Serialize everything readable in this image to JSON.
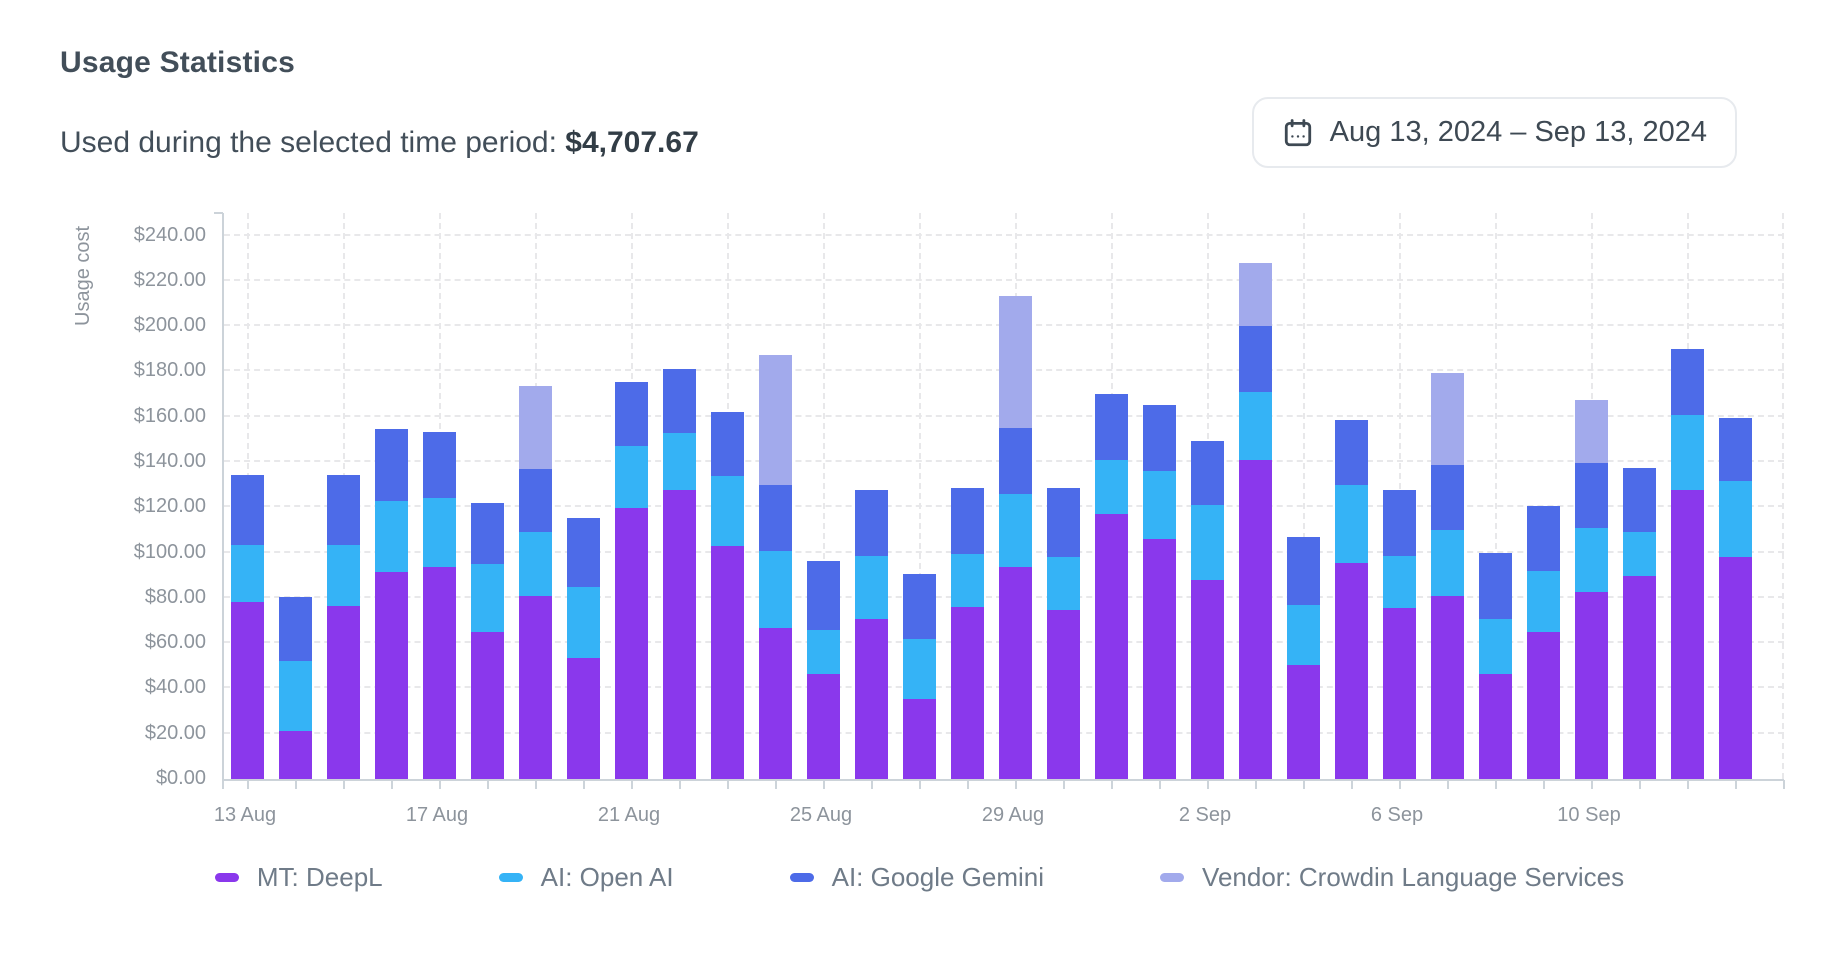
{
  "header": {
    "title": "Usage Statistics",
    "period_label": "Used during the selected time period:",
    "period_amount": "$4,707.67",
    "date_range": "Aug 13, 2024 – Sep 13, 2024"
  },
  "chart_data": {
    "type": "bar",
    "stacked": true,
    "y_axis_title": "Usage cost",
    "y_max": 250,
    "y_tick_step": 20,
    "y_tick_labels": [
      "$0.00",
      "$20.00",
      "$40.00",
      "$60.00",
      "$80.00",
      "$100.00",
      "$120.00",
      "$140.00",
      "$160.00",
      "$180.00",
      "$200.00",
      "$220.00",
      "$240.00"
    ],
    "grid": true,
    "legend_position": "bottom",
    "categories": [
      "13 Aug",
      "14 Aug",
      "15 Aug",
      "16 Aug",
      "17 Aug",
      "18 Aug",
      "19 Aug",
      "20 Aug",
      "21 Aug",
      "22 Aug",
      "23 Aug",
      "24 Aug",
      "25 Aug",
      "26 Aug",
      "27 Aug",
      "28 Aug",
      "29 Aug",
      "30 Aug",
      "31 Aug",
      "1 Sep",
      "2 Sep",
      "3 Sep",
      "4 Sep",
      "5 Sep",
      "6 Sep",
      "7 Sep",
      "8 Sep",
      "9 Sep",
      "10 Sep",
      "11 Sep",
      "12 Sep",
      "13 Sep"
    ],
    "x_tick_indices": [
      0,
      4,
      8,
      12,
      16,
      20,
      24,
      28
    ],
    "series": [
      {
        "name": "MT: DeepL",
        "color": "#8a38ec",
        "values": [
          78,
          21,
          76.5,
          91.5,
          93.5,
          65,
          81,
          53.5,
          119.5,
          127.5,
          103,
          66.5,
          46.5,
          70.5,
          35.5,
          76,
          93.5,
          74.5,
          117,
          106,
          88,
          141,
          50.5,
          95.5,
          75.5,
          81,
          46.5,
          65,
          82.5,
          89.5,
          127.5,
          98
        ]
      },
      {
        "name": "AI: Open AI",
        "color": "#35b3f6",
        "values": [
          25.5,
          31,
          27,
          31.5,
          30.5,
          30,
          28,
          31.5,
          27.5,
          25.5,
          31,
          34,
          19.5,
          28,
          26.5,
          23.5,
          32.5,
          23.5,
          24,
          30,
          33,
          30,
          26.5,
          34.5,
          23,
          29,
          24,
          27,
          28.5,
          19.5,
          33.5,
          33.5
        ]
      },
      {
        "name": "AI: Google Gemini",
        "color": "#4d6be8",
        "values": [
          31,
          28.5,
          31,
          31.5,
          29.5,
          27,
          28,
          30.5,
          28.5,
          28,
          28,
          29.5,
          30.5,
          29,
          28.5,
          29,
          29,
          30.5,
          29,
          29,
          28.5,
          29,
          30,
          28.5,
          29,
          28.5,
          29.5,
          28.5,
          28.5,
          28.5,
          29,
          28
        ]
      },
      {
        "name": "Vendor: Crowdin Language Services",
        "color": "#a2aaec",
        "values": [
          0,
          0,
          0,
          0,
          0,
          0,
          36.5,
          0,
          0,
          0,
          0,
          57.5,
          0,
          0,
          0,
          0,
          58.5,
          0,
          0,
          0,
          0,
          28,
          0,
          0,
          0,
          41,
          0,
          0,
          28,
          0,
          0,
          0
        ]
      }
    ]
  }
}
